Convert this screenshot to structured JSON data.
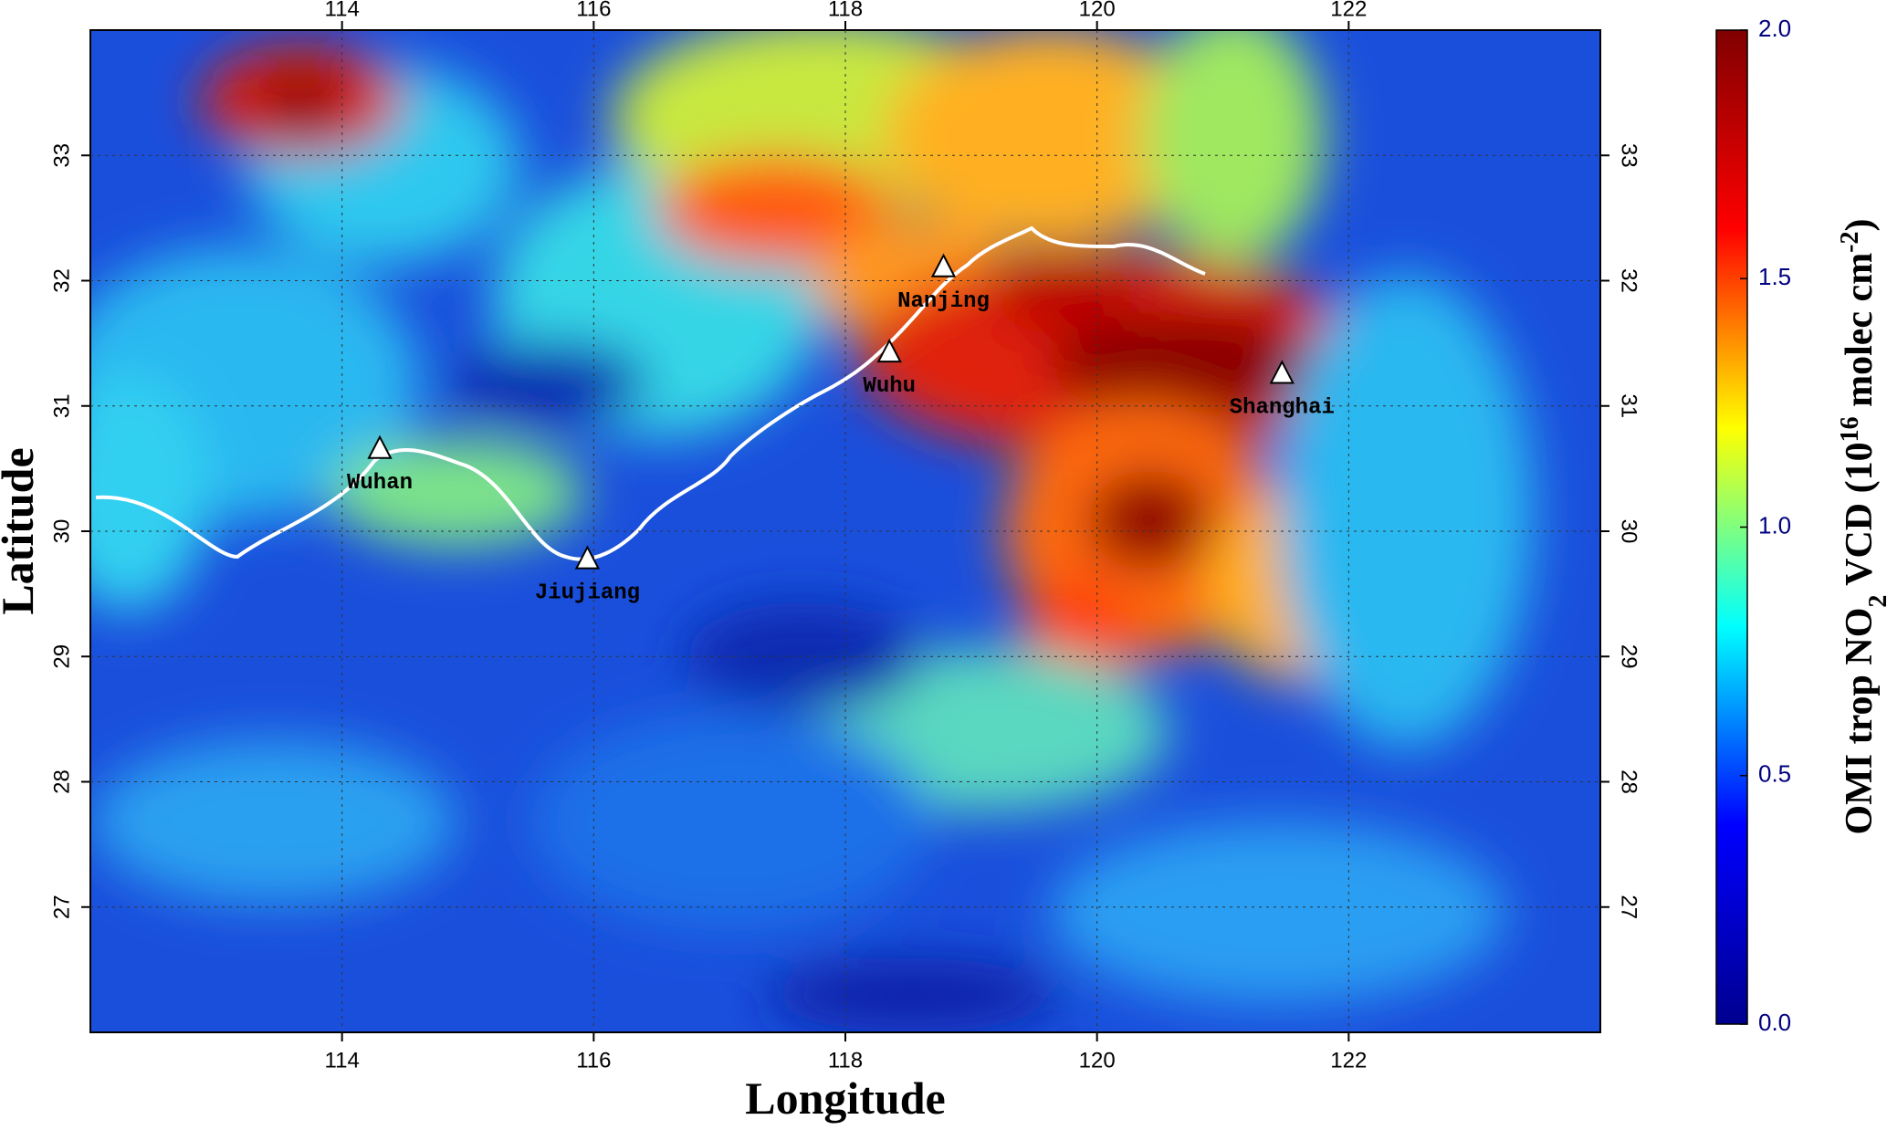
{
  "chart_data": {
    "type": "map",
    "xlabel": "Longitude",
    "ylabel": "Latitude",
    "xlim": [
      112,
      124
    ],
    "ylim": [
      26,
      34
    ],
    "xticks": [
      114,
      116,
      118,
      120,
      122
    ],
    "yticks": [
      27,
      28,
      29,
      30,
      31,
      32,
      33
    ],
    "grid": true,
    "cities": [
      {
        "name": "Wuhan",
        "lon": 114.3,
        "lat": 30.65
      },
      {
        "name": "Jiujiang",
        "lon": 115.95,
        "lat": 29.77
      },
      {
        "name": "Wuhu",
        "lon": 118.35,
        "lat": 31.42
      },
      {
        "name": "Nanjing",
        "lon": 118.78,
        "lat": 32.1
      },
      {
        "name": "Shanghai",
        "lon": 121.47,
        "lat": 31.25
      }
    ],
    "colorbar": {
      "lim": [
        0,
        2
      ],
      "ticks": [
        {
          "value": 0,
          "label": "0.0"
        },
        0.5,
        {
          "value": 1,
          "label": "1.0"
        },
        1.5,
        {
          "value": 2,
          "label": "2.0"
        }
      ],
      "colors": [
        "#00008f",
        "#0000ff",
        "#00ffff",
        "#ffff00",
        "#ff0000",
        "#800000"
      ],
      "label": [
        {
          "text": "OMI trop NO"
        },
        {
          "text": "2",
          "script": "sub"
        },
        {
          "text": " VCD (10"
        },
        {
          "text": "16",
          "script": "super"
        },
        {
          "text": " molec cm"
        },
        {
          "text": "-2",
          "script": "super"
        },
        {
          "text": ")"
        }
      ]
    }
  }
}
